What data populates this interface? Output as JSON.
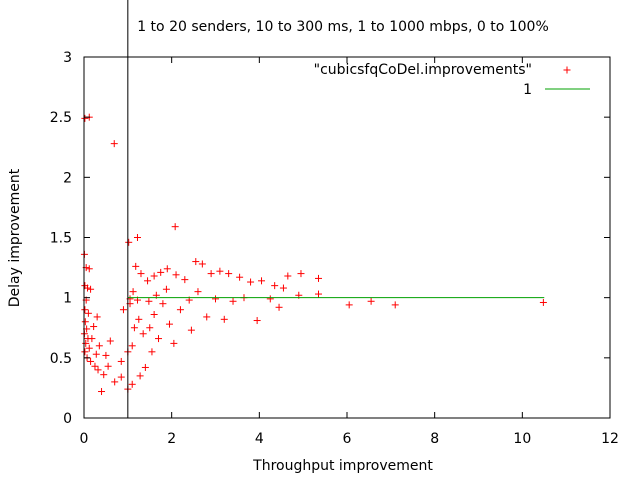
{
  "chart_data": {
    "type": "scatter",
    "title": "1 to 20 senders, 10 to 300 ms, 1 to 1000 mbps, 0 to 100%",
    "xlabel": "Throughput improvement",
    "ylabel": "Delay improvement",
    "xlim": [
      0,
      12
    ],
    "ylim": [
      0,
      3
    ],
    "xticks": [
      "0",
      "2",
      "4",
      "6",
      "8",
      "10",
      "12"
    ],
    "yticks": [
      "0",
      "0.5",
      "1",
      "1.5",
      "2",
      "2.5",
      "3"
    ],
    "legend_placement": "top-right",
    "grid": false,
    "reference_vline_x": 1,
    "series": [
      {
        "name": "\"cubicsfqCoDel.improvements\"",
        "kind": "points",
        "marker": "+",
        "color": "#ff0000",
        "points": [
          [
            0.02,
            2.49
          ],
          [
            0.12,
            2.5
          ],
          [
            0.69,
            2.28
          ],
          [
            2.08,
            1.59
          ],
          [
            1.22,
            1.5
          ],
          [
            1.02,
            1.46
          ],
          [
            0.01,
            1.36
          ],
          [
            0.05,
            1.25
          ],
          [
            0.12,
            1.24
          ],
          [
            0.02,
            1.1
          ],
          [
            0.08,
            1.08
          ],
          [
            0.15,
            1.07
          ],
          [
            0.05,
            0.98
          ],
          [
            0.02,
            0.9
          ],
          [
            0.1,
            0.87
          ],
          [
            0.03,
            0.8
          ],
          [
            0.06,
            0.74
          ],
          [
            0.01,
            0.7
          ],
          [
            0.09,
            0.66
          ],
          [
            0.04,
            0.62
          ],
          [
            0.12,
            0.58
          ],
          [
            0.02,
            0.55
          ],
          [
            0.07,
            0.5
          ],
          [
            0.15,
            0.47
          ],
          [
            0.25,
            0.43
          ],
          [
            0.32,
            0.4
          ],
          [
            0.45,
            0.36
          ],
          [
            0.5,
            0.52
          ],
          [
            0.35,
            0.6
          ],
          [
            0.6,
            0.64
          ],
          [
            0.7,
            0.3
          ],
          [
            0.85,
            0.34
          ],
          [
            0.9,
            0.9
          ],
          [
            1.05,
            0.95
          ],
          [
            1.12,
            1.05
          ],
          [
            1.18,
            1.26
          ],
          [
            1.3,
            1.2
          ],
          [
            1.45,
            1.14
          ],
          [
            1.6,
            1.18
          ],
          [
            1.75,
            1.21
          ],
          [
            1.9,
            1.24
          ],
          [
            2.1,
            1.19
          ],
          [
            2.3,
            1.15
          ],
          [
            2.55,
            1.3
          ],
          [
            2.7,
            1.28
          ],
          [
            2.9,
            1.2
          ],
          [
            3.1,
            1.22
          ],
          [
            3.3,
            1.2
          ],
          [
            3.55,
            1.17
          ],
          [
            3.8,
            1.13
          ],
          [
            4.05,
            1.14
          ],
          [
            4.35,
            1.1
          ],
          [
            4.65,
            1.18
          ],
          [
            4.95,
            1.2
          ],
          [
            5.35,
            1.16
          ],
          [
            5.35,
            1.03
          ],
          [
            4.9,
            1.02
          ],
          [
            4.55,
            1.08
          ],
          [
            3.4,
            0.97
          ],
          [
            3.2,
            0.82
          ],
          [
            3.95,
            0.81
          ],
          [
            4.45,
            0.92
          ],
          [
            2.8,
            0.84
          ],
          [
            2.45,
            0.73
          ],
          [
            2.2,
            0.9
          ],
          [
            6.05,
            0.94
          ],
          [
            6.55,
            0.97
          ],
          [
            7.1,
            0.94
          ],
          [
            10.48,
            0.96
          ],
          [
            0.85,
            0.47
          ],
          [
            1.0,
            0.55
          ],
          [
            1.1,
            0.6
          ],
          [
            1.15,
            0.75
          ],
          [
            1.25,
            0.82
          ],
          [
            1.35,
            0.7
          ],
          [
            1.5,
            0.75
          ],
          [
            1.55,
            0.55
          ],
          [
            1.4,
            0.42
          ],
          [
            1.28,
            0.35
          ],
          [
            1.6,
            0.86
          ],
          [
            1.8,
            0.95
          ],
          [
            1.95,
            0.78
          ],
          [
            2.05,
            0.62
          ],
          [
            1.7,
            0.66
          ],
          [
            0.55,
            0.43
          ],
          [
            0.28,
            0.53
          ],
          [
            0.4,
            0.22
          ],
          [
            0.18,
            0.66
          ],
          [
            0.22,
            0.76
          ],
          [
            0.3,
            0.84
          ],
          [
            1.05,
            0.99
          ],
          [
            1.22,
            0.98
          ],
          [
            1.48,
            0.97
          ],
          [
            1.65,
            1.02
          ],
          [
            1.88,
            1.07
          ],
          [
            2.6,
            1.05
          ],
          [
            3.0,
            0.99
          ],
          [
            3.65,
            1.0
          ],
          [
            4.25,
            0.99
          ],
          [
            2.4,
            0.98
          ],
          [
            1.1,
            0.28
          ],
          [
            1.0,
            0.24
          ]
        ]
      },
      {
        "name": "1",
        "kind": "line",
        "color": "#00a000",
        "x": [
          1,
          10.5
        ],
        "y": [
          1,
          1
        ]
      }
    ]
  }
}
